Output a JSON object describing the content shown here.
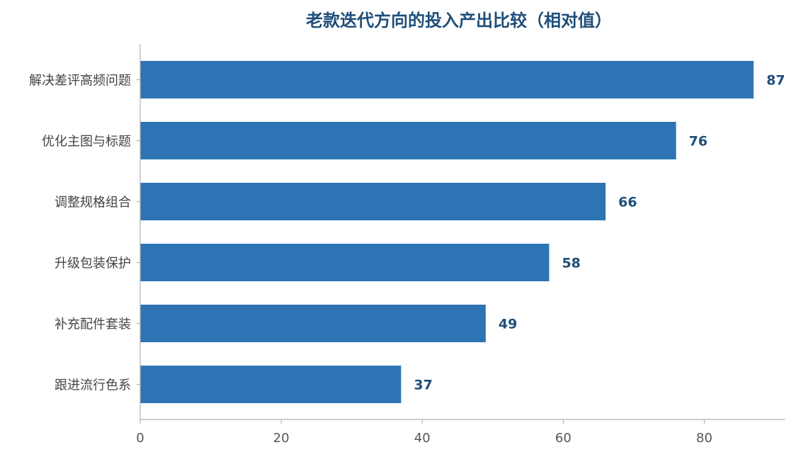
{
  "chart_data": {
    "type": "bar",
    "orientation": "horizontal",
    "title": "老款迭代方向的投入产出比较（相对值）",
    "xlabel": "",
    "ylabel": "",
    "categories": [
      "解决差评高频问题",
      "优化主图与标题",
      "调整规格组合",
      "升级包装保护",
      "补充配件套装",
      "跟进流行色系"
    ],
    "values": [
      87,
      76,
      66,
      58,
      49,
      37
    ],
    "xlim": [
      0,
      91.5
    ],
    "xticks": [
      0,
      20,
      40,
      60,
      80
    ],
    "xtick_labels": [
      "0",
      "20",
      "40",
      "60",
      "80"
    ],
    "grid": false,
    "show_data_labels": true,
    "colors": {
      "bar": "#2e74b5",
      "title": "#1f4e79",
      "value_label": "#1f4e79",
      "axis": "#b0b0b0",
      "category_text": "#444444",
      "tick_text": "#555555"
    }
  }
}
